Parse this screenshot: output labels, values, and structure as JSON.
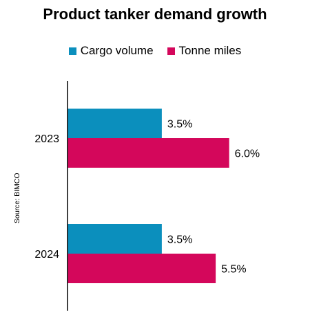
{
  "chart_data": {
    "type": "bar",
    "orientation": "horizontal",
    "title": "Product tanker demand growth",
    "categories": [
      "2023",
      "2024"
    ],
    "series": [
      {
        "name": "Cargo volume",
        "color": "#0b8fbd",
        "values": [
          3.5,
          3.5
        ],
        "labels": [
          "3.5%",
          "3.5%"
        ]
      },
      {
        "name": "Tonne miles",
        "color": "#d4075b",
        "values": [
          6.0,
          5.5
        ],
        "labels": [
          "6.0%",
          "5.5%"
        ]
      }
    ],
    "xlim": [
      0,
      9
    ],
    "xlabel": "",
    "ylabel": "",
    "grid": false,
    "legend": "top",
    "source": "Source: BIMCO"
  }
}
